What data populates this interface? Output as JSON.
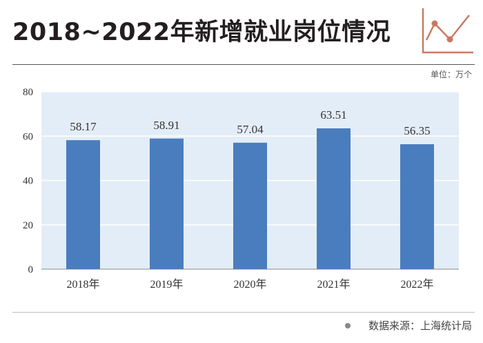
{
  "header": {
    "title": "2018~2022年新增就业岗位情况",
    "unit": "单位：万个"
  },
  "footer": {
    "source": "数据来源：上海统计局"
  },
  "colors": {
    "bar": "#4a7dbd",
    "plot_bg": "#e3edf7",
    "icon_line": "#c97a62"
  },
  "chart_data": {
    "type": "bar",
    "categories": [
      "2018年",
      "2019年",
      "2020年",
      "2021年",
      "2022年"
    ],
    "values": [
      58.17,
      58.91,
      57.04,
      63.51,
      56.35
    ],
    "data_labels": [
      "58.17",
      "58.91",
      "57.04",
      "63.51",
      "56.35"
    ],
    "title": "2018~2022年新增就业岗位情况",
    "ylabel": "",
    "xlabel": "",
    "ylim": [
      0,
      80
    ],
    "yticks": [
      0,
      20,
      40,
      60,
      80
    ],
    "grid": true,
    "legend": "none"
  }
}
